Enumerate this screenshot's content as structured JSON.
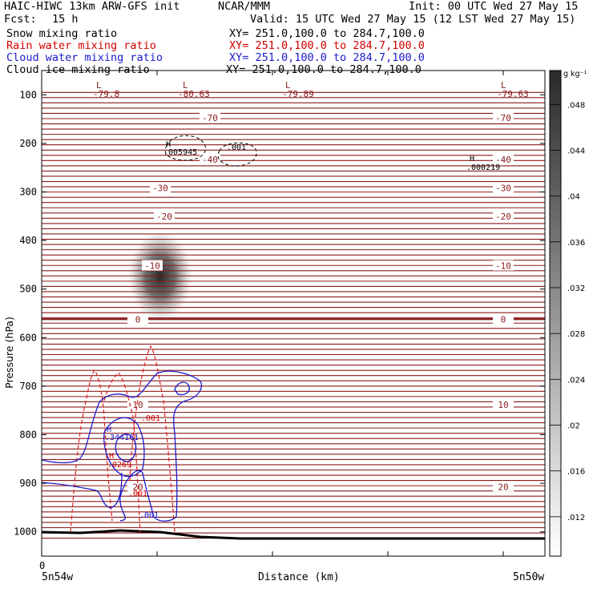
{
  "header": {
    "model": "HAIC-HIWC 13km ARW-GFS init",
    "org": "NCAR/MMM",
    "init": "Init: 00 UTC Wed 27 May 15",
    "fcst_label": "Fcst:",
    "fcst_value": "15 h",
    "valid": "Valid: 15 UTC Wed 27 May 15 (12 LST Wed 27 May 15)"
  },
  "fields": [
    {
      "name": "Snow mixing ratio",
      "xy": "XY= 251.0,100.0 to 284.7,100.0",
      "color": "#000000"
    },
    {
      "name": "Rain water mixing ratio",
      "xy": "XY= 251.0,100.0 to 284.7,100.0",
      "color": "#d40000"
    },
    {
      "name": "Cloud water mixing ratio",
      "xy": "XY= 251.0,100.0 to 284.7,100.0",
      "color": "#1a1acc"
    },
    {
      "name": "Cloud ice mixing ratio",
      "xy": "XY= 251.0,100.0 to 284.7,100.0",
      "color": "#000000"
    }
  ],
  "chart_data": {
    "type": "contour",
    "ylabel": "Pressure (hPa)",
    "xlabel": "Distance (km)",
    "y_ticks": [
      100,
      200,
      300,
      400,
      500,
      600,
      700,
      800,
      900,
      1000
    ],
    "ylim": [
      1050,
      50
    ],
    "x_tick_label": "0",
    "x_left_label": "5n54w",
    "x_right_label": "5n50w",
    "colorbar": {
      "unit": "g kg⁻¹",
      "ticks": [
        ".012",
        ".016",
        ".02",
        ".024",
        ".028",
        ".032",
        ".036",
        ".04",
        ".044",
        ".048"
      ]
    },
    "isotherm_labels": [
      {
        "text": "-70",
        "p": 147
      },
      {
        "text": "-40",
        "p": 233
      },
      {
        "text": "-30",
        "p": 292
      },
      {
        "text": "-20",
        "p": 350
      },
      {
        "text": "-10",
        "p": 452
      },
      {
        "text": "0",
        "p": 562
      },
      {
        "text": "10",
        "p": 738
      },
      {
        "text": "20",
        "p": 907
      }
    ],
    "lows": [
      {
        "label": "L",
        "value": "-79.8"
      },
      {
        "label": "L",
        "value": "-80.63"
      },
      {
        "label": "L",
        "value": "-79.89"
      },
      {
        "label": "L",
        "value": "-79.63"
      }
    ],
    "ice_annotations": [
      {
        "label": "H",
        "value": ".005945"
      },
      {
        "label": "",
        "value": ".001"
      },
      {
        "label": "H",
        "value": ".000219"
      }
    ],
    "cloud_water_annotations": [
      {
        "label": "H",
        "value": ".344161"
      },
      {
        "label": "",
        "value": ".001"
      }
    ],
    "rain_annotations": [
      {
        "label": "H",
        "value": ".0269"
      },
      {
        "label": "",
        "value": ".001"
      },
      {
        "label": "",
        "value": ".001"
      }
    ],
    "colors": {
      "isotherm": "#8b1a1a",
      "rain": "#e02020",
      "cloud_water": "#1a1acc",
      "cloud_ice": "#000000",
      "terrain": "#000000"
    }
  }
}
